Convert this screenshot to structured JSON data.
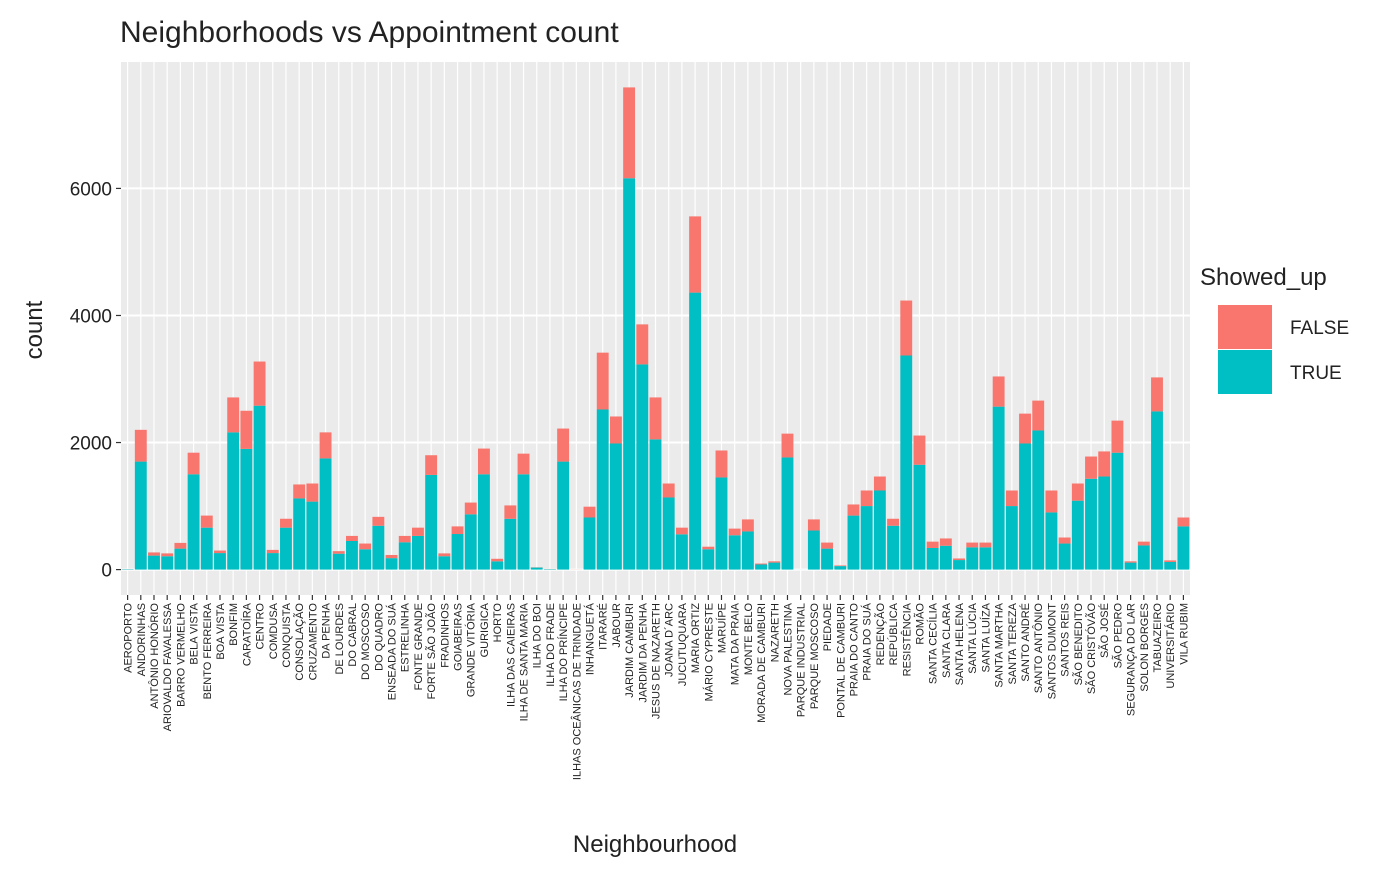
{
  "chart_data": {
    "type": "stacked_bar",
    "title": "Neighborhoods vs Appointment count",
    "x_label": "Neighbourhood",
    "y_label": "count",
    "legend_title": "Showed_up",
    "legend_position": "right",
    "grid": true,
    "categories": [
      "AEROPORTO",
      "ANDORINHAS",
      "ANTÔNIO HONÓRIO",
      "ARIOVALDO FAVALESSA",
      "BARRO VERMELHO",
      "BELA VISTA",
      "BENTO FERREIRA",
      "BOA VISTA",
      "BONFIM",
      "CARATOÍRA",
      "CENTRO",
      "COMDUSA",
      "CONQUISTA",
      "CONSOLAÇÃO",
      "CRUZAMENTO",
      "DA PENHA",
      "DE LOURDES",
      "DO CABRAL",
      "DO MOSCOSO",
      "DO QUADRO",
      "ENSEADA DO SUÁ",
      "ESTRELINHA",
      "FONTE GRANDE",
      "FORTE SÃO JOÃO",
      "FRADINHOS",
      "GOIABEIRAS",
      "GRANDE VITÓRIA",
      "GURIGICA",
      "HORTO",
      "ILHA DAS CAIEIRAS",
      "ILHA DE SANTA MARIA",
      "ILHA DO BOI",
      "ILHA DO FRADE",
      "ILHA DO PRÍNCIPE",
      "ILHAS OCEÂNICAS DE TRINDADE",
      "INHANGUETÁ",
      "ITARARÉ",
      "JABOUR",
      "JARDIM CAMBURI",
      "JARDIM DA PENHA",
      "JESUS DE NAZARETH",
      "JOANA D´ARC",
      "JUCUTUQUARA",
      "MARIA ORTIZ",
      "MÁRIO CYPRESTE",
      "MARUÍPE",
      "MATA DA PRAIA",
      "MONTE BELO",
      "MORADA DE CAMBURI",
      "NAZARETH",
      "NOVA PALESTINA",
      "PARQUE INDUSTRIAL",
      "PARQUE MOSCOSO",
      "PIEDADE",
      "PONTAL DE CAMBURI",
      "PRAIA DO CANTO",
      "PRAIA DO SUÁ",
      "REDENÇÃO",
      "REPÚBLICA",
      "RESISTÊNCIA",
      "ROMÃO",
      "SANTA CECÍLIA",
      "SANTA CLARA",
      "SANTA HELENA",
      "SANTA LÚCIA",
      "SANTA LUÍZA",
      "SANTA MARTHA",
      "SANTA TEREZA",
      "SANTO ANDRÉ",
      "SANTO ANTÔNIO",
      "SANTOS DUMONT",
      "SANTOS REIS",
      "SÃO BENEDITO",
      "SÃO CRISTÓVÃO",
      "SÃO JOSÉ",
      "SÃO PEDRO",
      "SEGURANÇA DO LAR",
      "SOLON BORGES",
      "TABUAZEIRO",
      "UNIVERSITÁRIO",
      "VILA RUBIM"
    ],
    "series": [
      {
        "name": "FALSE",
        "color": "#F8766D",
        "values": [
          1,
          500,
          50,
          45,
          90,
          340,
          190,
          40,
          550,
          600,
          695,
          50,
          140,
          220,
          285,
          410,
          40,
          80,
          90,
          140,
          50,
          100,
          130,
          310,
          45,
          120,
          185,
          405,
          40,
          210,
          325,
          3,
          2,
          520,
          2,
          170,
          895,
          425,
          1430,
          630,
          660,
          220,
          105,
          1200,
          40,
          425,
          105,
          190,
          15,
          20,
          375,
          0,
          175,
          95,
          10,
          175,
          245,
          220,
          110,
          865,
          460,
          100,
          115,
          25,
          75,
          75,
          475,
          245,
          470,
          470,
          345,
          95,
          270,
          350,
          395,
          505,
          20,
          60,
          535,
          25,
          140
        ]
      },
      {
        "name": "TRUE",
        "color": "#00BFC4",
        "values": [
          7,
          1700,
          220,
          210,
          330,
          1500,
          660,
          260,
          2160,
          1900,
          2580,
          260,
          660,
          1120,
          1070,
          1750,
          250,
          450,
          320,
          690,
          180,
          430,
          530,
          1490,
          210,
          560,
          870,
          1500,
          130,
          800,
          1500,
          32,
          8,
          1700,
          0,
          820,
          2520,
          1985,
          6160,
          3230,
          2050,
          1135,
          555,
          4360,
          320,
          1450,
          540,
          600,
          80,
          110,
          1765,
          1,
          615,
          330,
          55,
          850,
          1000,
          1245,
          690,
          3370,
          1650,
          340,
          375,
          150,
          350,
          350,
          2565,
          1000,
          1985,
          2190,
          900,
          410,
          1085,
          1430,
          1465,
          1840,
          110,
          380,
          2490,
          120,
          680
        ]
      }
    ],
    "ylim": [
      -400,
      7990
    ],
    "yticks": [
      0,
      2000,
      4000,
      6000
    ]
  }
}
